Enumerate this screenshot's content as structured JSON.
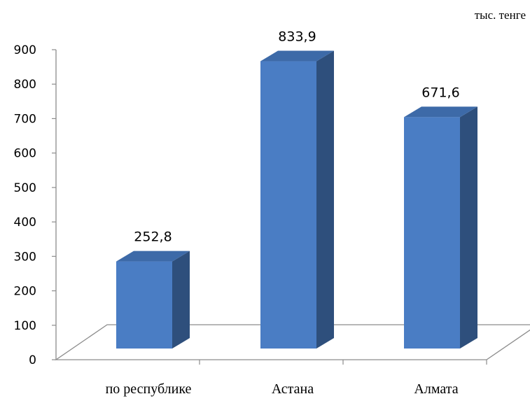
{
  "chart_data": {
    "type": "bar",
    "categories": [
      "по республике",
      "Астана",
      "Алмата"
    ],
    "values": [
      252.8,
      833.9,
      671.6
    ],
    "data_labels": [
      "252,8",
      "833,9",
      "671,6"
    ],
    "unit": "тыс. тенге",
    "ylim": [
      0,
      900
    ],
    "yticks": [
      0,
      100,
      200,
      300,
      400,
      500,
      600,
      700,
      800,
      900
    ],
    "grid": false,
    "legend": "none",
    "style": "3d-column",
    "colors": {
      "front": "#4a7dc4",
      "side": "#2e4f7c",
      "top": "#3d6aa8",
      "axis": "#8c8c8c"
    }
  }
}
